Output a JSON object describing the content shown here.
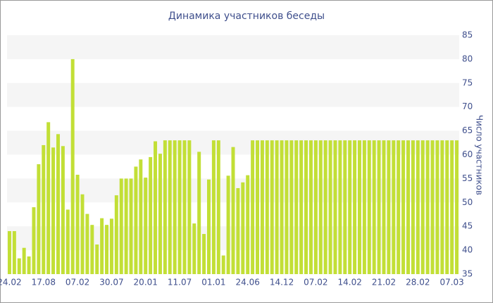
{
  "chart_data": {
    "type": "bar",
    "title": "Динамика участников беседы",
    "y_label": "Число участников",
    "categories": [
      "24.02",
      null,
      null,
      null,
      null,
      null,
      null,
      "17.08",
      null,
      null,
      null,
      null,
      null,
      null,
      "07.02",
      null,
      null,
      null,
      null,
      null,
      null,
      "30.07",
      null,
      null,
      null,
      null,
      null,
      null,
      "20.01",
      null,
      null,
      null,
      null,
      null,
      null,
      "11.07",
      null,
      null,
      null,
      null,
      null,
      null,
      "01.01",
      null,
      null,
      null,
      null,
      null,
      null,
      "24.06",
      null,
      null,
      null,
      null,
      null,
      null,
      "14.12",
      null,
      null,
      null,
      null,
      null,
      null,
      "07.02",
      null,
      null,
      null,
      null,
      null,
      null,
      "14.02",
      null,
      null,
      null,
      null,
      null,
      null,
      "21.02",
      null,
      null,
      null,
      null,
      null,
      null,
      "28.02",
      null,
      null,
      null,
      null,
      null,
      null,
      "07.03",
      null
    ],
    "values": [
      44,
      44,
      38.3,
      40.5,
      38.7,
      49,
      58,
      62,
      66.8,
      61.5,
      64.3,
      61.8,
      48.5,
      80,
      55.8,
      51.7,
      47.6,
      45.3,
      41.2,
      46.7,
      45.3,
      46.6,
      51.5,
      55,
      55,
      55,
      57.5,
      59,
      55.2,
      59.5,
      62.8,
      60.2,
      63,
      63,
      63,
      63,
      63,
      63,
      45.6,
      60.6,
      43.4,
      54.8,
      63,
      63,
      38.9,
      55.6,
      61.6,
      53,
      54.2,
      55.7,
      63,
      63,
      63,
      63,
      63,
      63,
      63,
      63,
      63,
      63,
      63,
      63,
      63,
      63,
      63,
      63,
      63,
      63,
      63,
      63,
      63,
      63,
      63,
      63,
      63,
      63,
      63,
      63,
      63,
      63,
      63,
      63,
      63,
      63,
      63,
      63,
      63,
      63,
      63,
      63,
      63,
      63,
      63
    ],
    "color": "#c2df36",
    "band_color": "#f5f5f5",
    "ylim": [
      35,
      85
    ],
    "yticks": [
      35,
      40,
      45,
      50,
      55,
      60,
      65,
      70,
      75,
      80,
      85
    ],
    "grid": "bands",
    "y_axis_side": "right"
  }
}
